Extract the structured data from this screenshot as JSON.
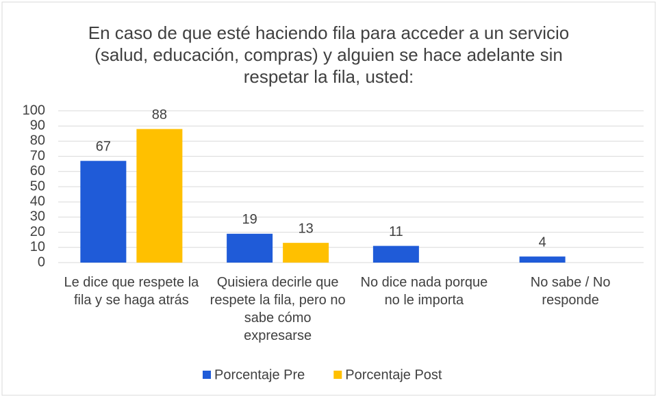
{
  "chart_data": {
    "type": "bar",
    "title": "En caso de que esté haciendo fila para acceder a un servicio (salud, educación, compras) y alguien se hace adelante sin respetar la fila, usted:",
    "categories": [
      "Le dice que respete la fila y se haga atrás",
      "Quisiera decirle que respete la fila, pero no sabe cómo expresarse",
      "No dice nada porque no le importa",
      "No sabe / No responde"
    ],
    "series": [
      {
        "name": "Porcentaje Pre",
        "color": "#1f5bd8",
        "values": [
          67,
          19,
          11,
          4
        ]
      },
      {
        "name": "Porcentaje Post",
        "color": "#ffc000",
        "values": [
          88,
          13,
          null,
          null
        ]
      }
    ],
    "ylim": [
      0,
      100
    ],
    "yticks": [
      0,
      10,
      20,
      30,
      40,
      50,
      60,
      70,
      80,
      90,
      100
    ],
    "grid": true,
    "legend": "bottom"
  }
}
